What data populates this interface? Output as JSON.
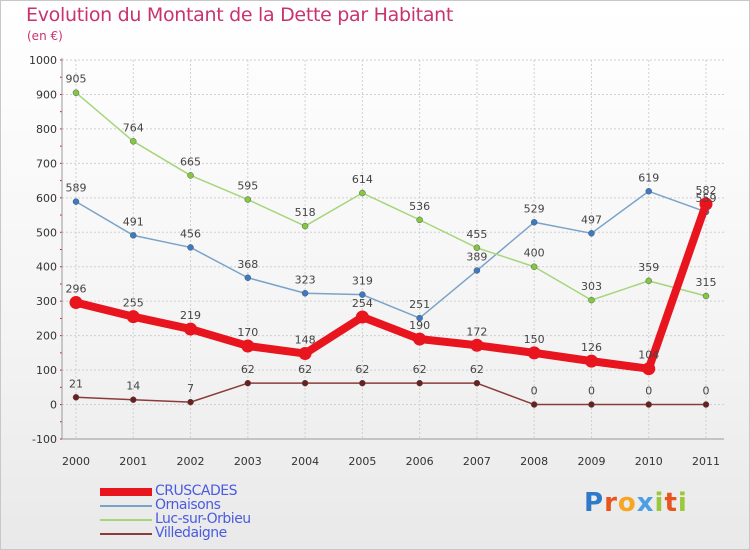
{
  "title": "Evolution du Montant de la Dette par Habitant",
  "subtitle": "(en €)",
  "logo_letters": [
    "P",
    "r",
    "o",
    "x",
    "i",
    "t",
    "i"
  ],
  "logo_colors": [
    "#2f79c9",
    "#e8541d",
    "#f5a623",
    "#4e9ee4",
    "#9ac83a",
    "#e8541d",
    "#9ac83a"
  ],
  "chart_data": {
    "type": "line",
    "x": [
      "2000",
      "2001",
      "2002",
      "2003",
      "2004",
      "2005",
      "2006",
      "2007",
      "2008",
      "2009",
      "2010",
      "2011"
    ],
    "ylim": [
      -100,
      1000
    ],
    "yticks": [
      "-100",
      "0",
      "100",
      "200",
      "300",
      "400",
      "500",
      "600",
      "700",
      "800",
      "900",
      "1000"
    ],
    "grid": true,
    "legend_position": "bottom-left",
    "series": [
      {
        "name": "CRUSCADES",
        "color": "#e8141e",
        "marker_color": "#e8141e",
        "values": [
          296,
          255,
          219,
          170,
          148,
          254,
          190,
          172,
          150,
          126,
          104,
          582
        ],
        "labels": [
          "296",
          "255",
          "219",
          "170",
          "148",
          "254",
          "190",
          "172",
          "150",
          "126",
          "104",
          "582"
        ]
      },
      {
        "name": "Ornaisons",
        "color": "#7aa3c9",
        "marker_color": "#3b7bc6",
        "values": [
          589,
          491,
          456,
          368,
          323,
          319,
          251,
          389,
          529,
          497,
          619,
          559
        ],
        "labels": [
          "589",
          "491",
          "456",
          "368",
          "323",
          "319",
          "251",
          "389",
          "529",
          "497",
          "619",
          "559"
        ]
      },
      {
        "name": "Luc-sur-Orbieu",
        "color": "#a6d67a",
        "marker_color": "#82c93f",
        "values": [
          905,
          764,
          665,
          595,
          518,
          614,
          536,
          455,
          400,
          303,
          359,
          315
        ],
        "labels": [
          "905",
          "764",
          "665",
          "595",
          "518",
          "614",
          "536",
          "455",
          "400",
          "303",
          "359",
          "315"
        ]
      },
      {
        "name": "Villedaigne",
        "color": "#8a3b3b",
        "marker_color": "#6b1f1f",
        "values": [
          21,
          14,
          7,
          62,
          62,
          62,
          62,
          62,
          0,
          0,
          0,
          0
        ],
        "labels": [
          "21",
          "14",
          "7",
          "62",
          "62",
          "62",
          "62",
          "62",
          "0",
          "0",
          "0",
          "0"
        ]
      }
    ]
  }
}
